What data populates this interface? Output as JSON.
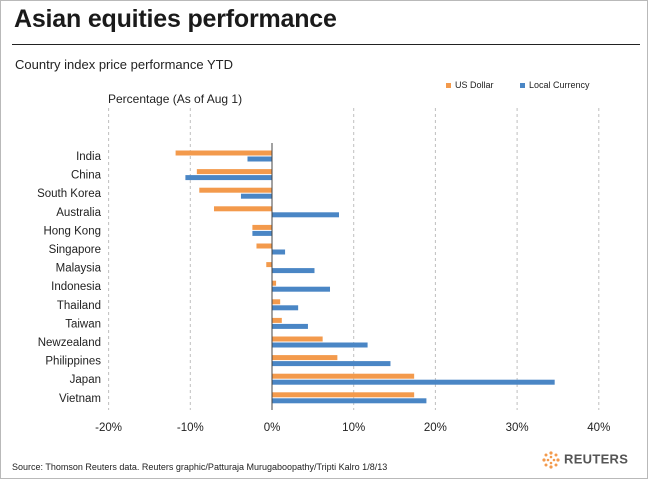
{
  "header": {
    "title": "Asian equities performance",
    "subtitle": "Country index price performance YTD"
  },
  "legend": {
    "usd_label": "US Dollar",
    "local_label": "Local Currency"
  },
  "footer": {
    "source": "Source: Thomson Reuters data.  Reuters graphic/Patturaja Murugaboopathy/Tripti Kalro 1/8/13",
    "logo_text": "REUTERS"
  },
  "colors": {
    "usd": "#f39a4c",
    "local": "#4a86c5",
    "grid": "#bfbfbf"
  },
  "chart_data": {
    "type": "bar",
    "orientation": "horizontal",
    "title": "Asian equities performance",
    "subtitle": "Country index price performance YTD",
    "ylabel": "Percentage (As of Aug 1)",
    "xlim": [
      -20,
      40
    ],
    "xticks": [
      -20,
      -10,
      0,
      10,
      20,
      30,
      40
    ],
    "xtick_labels": [
      "-20%",
      "-10%",
      "0%",
      "10%",
      "20%",
      "30%",
      "40%"
    ],
    "grid": "vertical dashed",
    "legend_position": "top-right",
    "categories": [
      "India",
      "China",
      "South Korea",
      "Australia",
      "Hong Kong",
      "Singapore",
      "Malaysia",
      "Indonesia",
      "Thailand",
      "Taiwan",
      "Newzealand",
      "Philippines",
      "Japan",
      "Vietnam"
    ],
    "series": [
      {
        "name": "US Dollar",
        "values": [
          -11.8,
          -9.2,
          -8.9,
          -7.1,
          -2.4,
          -1.9,
          -0.7,
          0.5,
          1.0,
          1.2,
          6.2,
          8.0,
          17.4,
          17.4
        ]
      },
      {
        "name": "Local Currency",
        "values": [
          -3.0,
          -10.6,
          -3.8,
          8.2,
          -2.4,
          1.6,
          5.2,
          7.1,
          3.2,
          4.4,
          11.7,
          14.5,
          34.6,
          18.9
        ]
      }
    ]
  }
}
